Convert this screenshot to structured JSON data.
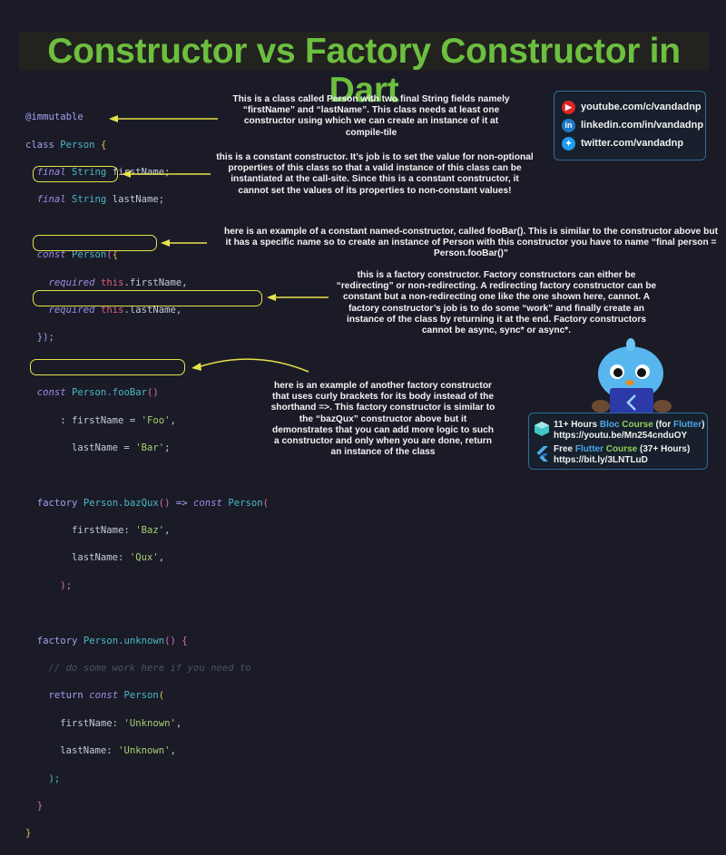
{
  "title": "Constructor vs Factory Constructor in Dart",
  "code": {
    "l1": "@immutable",
    "l2a": "class",
    "l2b": "Person",
    "l2c": "{",
    "l3a": "final",
    "l3b": "String",
    "l3c": "firstName;",
    "l4a": "final",
    "l4b": "String",
    "l4c": "lastName;",
    "l6a": "const",
    "l6b": "Person",
    "l6c": "(",
    "l6d": "{",
    "l7a": "required",
    "l7b": "this",
    "l7c": ".firstName,",
    "l8a": "required",
    "l8b": "this",
    "l8c": ".lastName,",
    "l9": "});",
    "l11a": "const",
    "l11b": "Person",
    "l11c": ".fooBar",
    "l11d": "()",
    "l12a": ": firstName = ",
    "l12b": "'Foo'",
    "l12c": ",",
    "l13a": "lastName = ",
    "l13b": "'Bar'",
    "l13c": ";",
    "l15a": "factory",
    "l15b": "Person",
    "l15c": ".bazQux",
    "l15d": "()",
    "l15e": " => ",
    "l15f": "const",
    "l15g": "Person",
    "l15h": "(",
    "l16a": "firstName: ",
    "l16b": "'Baz'",
    "l16c": ",",
    "l17a": "lastName: ",
    "l17b": "'Qux'",
    "l17c": ",",
    "l18": ");",
    "l20a": "factory",
    "l20b": "Person",
    "l20c": ".unknown",
    "l20d": "()",
    "l20e": "{",
    "l21": "// do some work here if you need to",
    "l22a": "return",
    "l22b": "const",
    "l22c": "Person",
    "l22d": "(",
    "l23a": "firstName: ",
    "l23b": "'Unknown'",
    "l23c": ",",
    "l24a": "lastName: ",
    "l24b": "'Unknown'",
    "l24c": ",",
    "l25": ");",
    "l26": "}",
    "l27": "}"
  },
  "notes": {
    "class": "This is a class called Person with two final String fields namely “firstName” and “lastName”. This class needs at least one constructor using which we can create an instance of it at compile-tile",
    "const": "this is a constant constructor. It’s job is to set the value for non-optional properties of this class so that a valid instance of this class can be instantiated at the call-site. Since this is a constant constructor, it cannot set the values of its properties to non-constant values!",
    "named": "here is an example of a constant named-constructor, called fooBar(). This is similar to the constructor above but it has a specific name so to create an instance of Person with this constructor you have to name “final person = Person.fooBar()”",
    "factory": "this is a factory constructor. Factory constructors can either be “redirecting” or non-redirecting. A redirecting factory constructor can be constant but a non-redirecting one like the one shown here, cannot. A factory constructor’s job is to do some “work” and finally create an instance of the class by returning it at the end. Factory constructors cannot be async, sync* or async*.",
    "unknown": "here is an example of another factory constructor that uses curly brackets for its body instead of the shorthand =>. This factory constructor is similar to the “bazQux” constructor above but it demonstrates that you can add more logic to such a constructor and only when you are done, return an instance of the class"
  },
  "social": [
    {
      "icon": "youtube-icon",
      "text": "youtube.com/c/vandadnp",
      "color": "#e02424"
    },
    {
      "icon": "linkedin-icon",
      "text": "linkedin.com/in/vandadnp",
      "color": "#1f78c8"
    },
    {
      "icon": "twitter-icon",
      "text": "twitter.com/vandadnp",
      "color": "#1d9bf0"
    }
  ],
  "courses": {
    "c1_a": "11+ Hours ",
    "c1_b": "Bloc",
    "c1_c": " Course",
    "c1_d": " (for ",
    "c1_e": "Flutter",
    "c1_f": ")",
    "c1_url": "https://youtu.be/Mn254cnduOY",
    "c2_a": "Free ",
    "c2_b": "Flutter",
    "c2_c": " Course",
    "c2_d": " (37+ Hours)",
    "c2_url": "https://bit.ly/3LNTLuD"
  },
  "colors": {
    "title": "#6cbf3f",
    "highlight": "#e6e24a",
    "background": "#1b1b27"
  }
}
